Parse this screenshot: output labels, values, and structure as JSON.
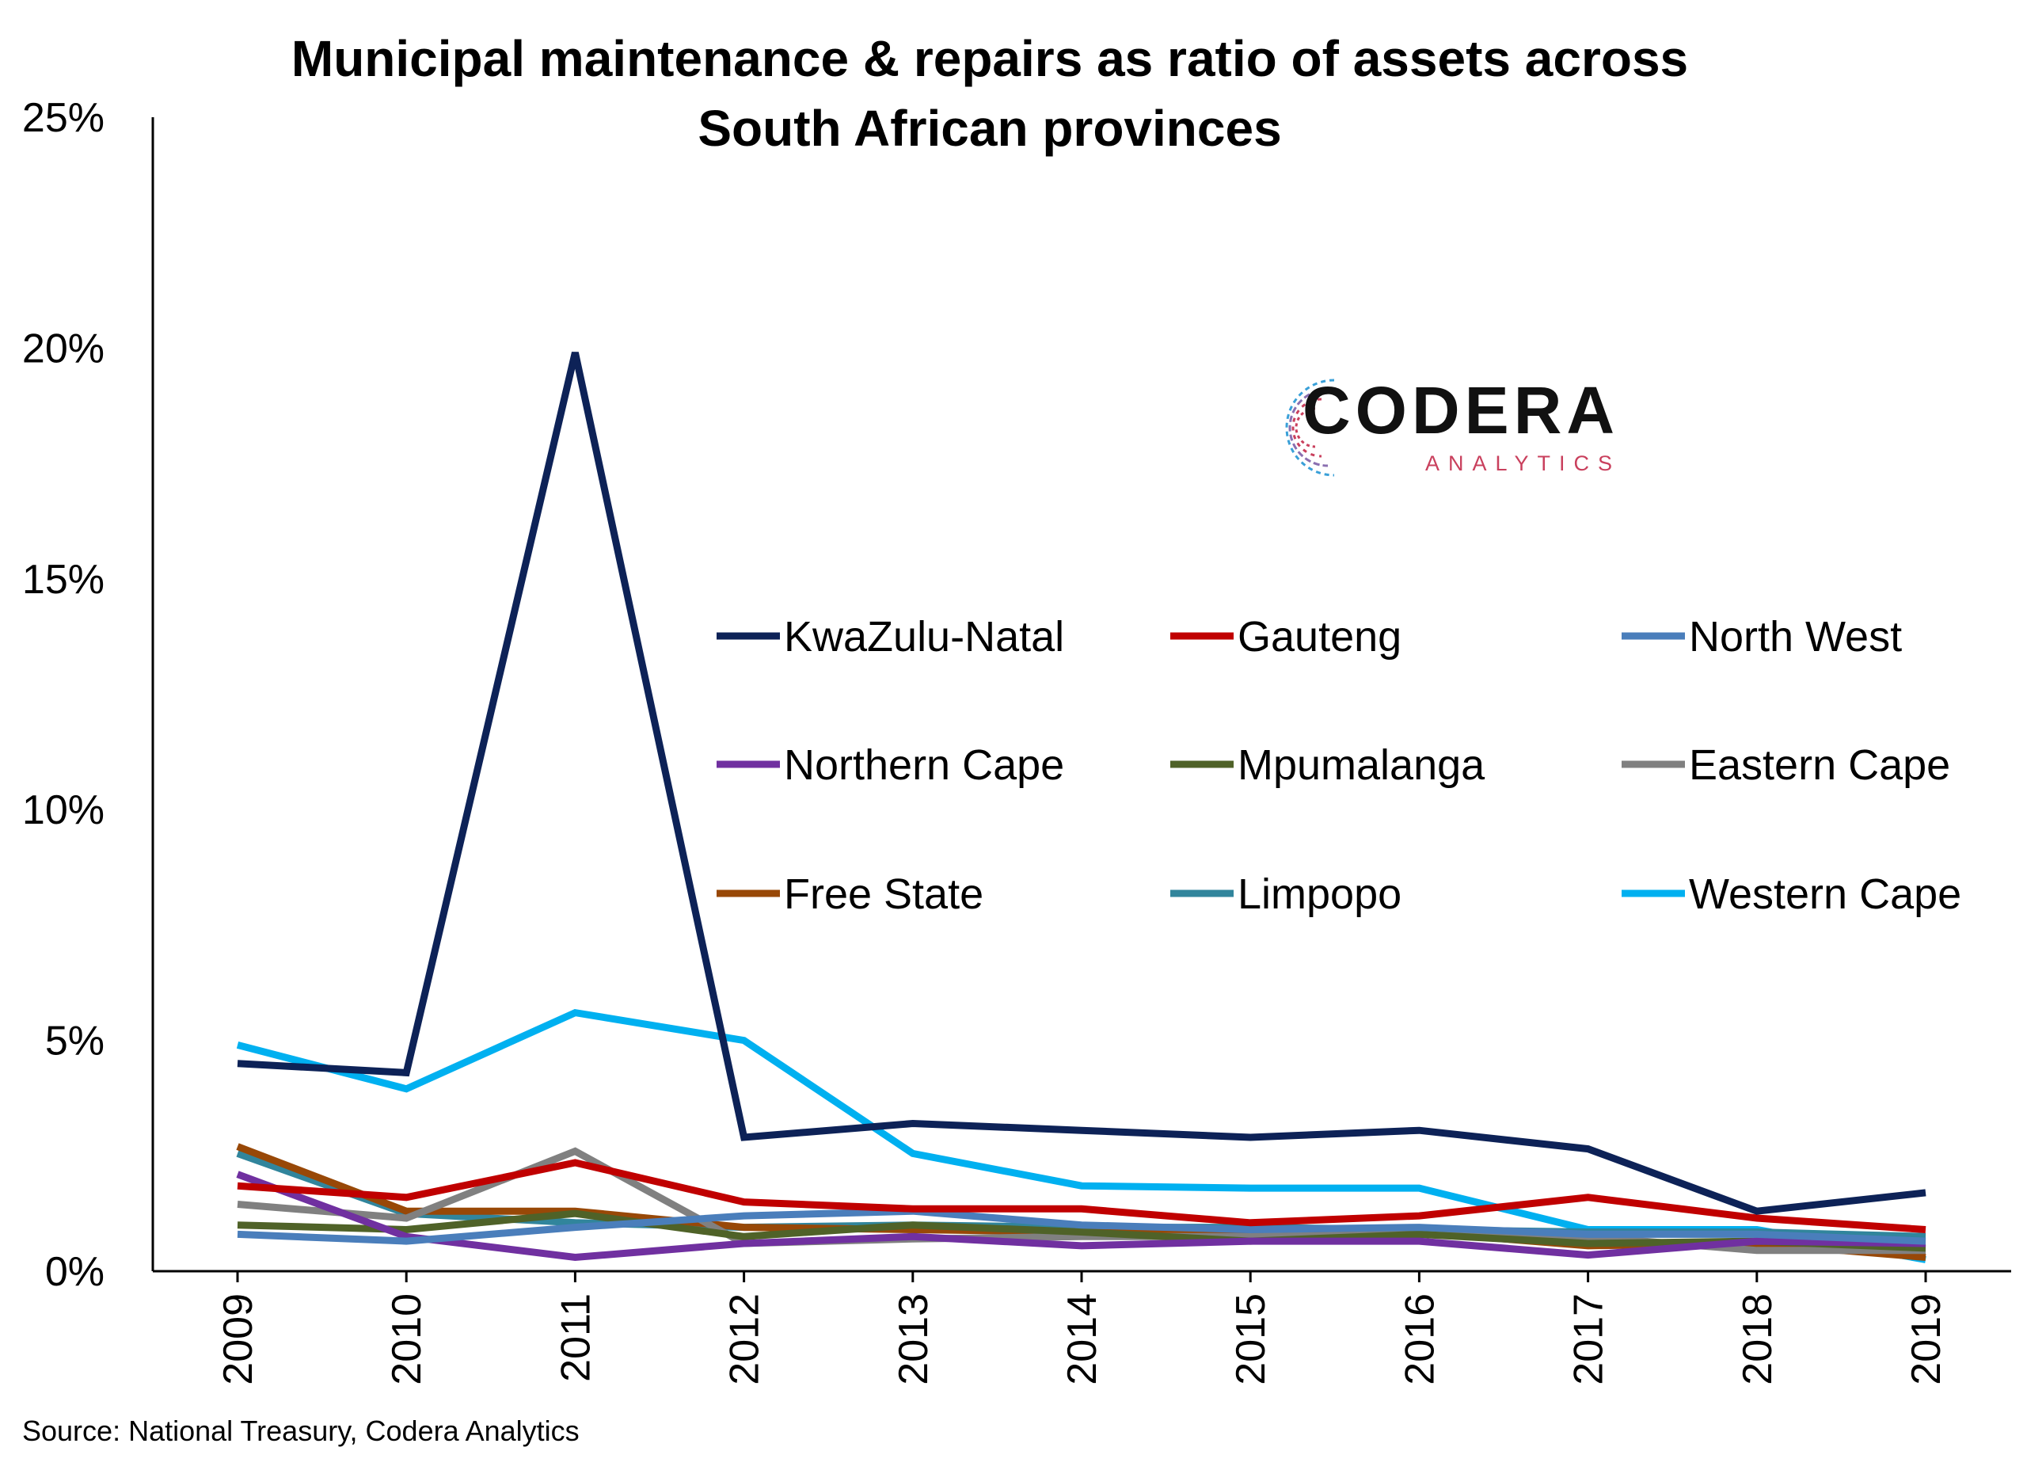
{
  "chart_data": {
    "type": "line",
    "title": "Municipal maintenance & repairs as ratio of assets across South African provinces",
    "x": [
      "2009",
      "2010",
      "2011",
      "2012",
      "2013",
      "2014",
      "2015",
      "2016",
      "2017",
      "2018",
      "2019"
    ],
    "ylim": [
      0,
      25
    ],
    "yticks": [
      0,
      5,
      10,
      15,
      20,
      25
    ],
    "ytick_labels": [
      "0%",
      "5%",
      "10%",
      "15%",
      "20%",
      "25%"
    ],
    "grid": false,
    "legend_placement": "center-right",
    "series": [
      {
        "name": "KwaZulu-Natal",
        "color": "#0d2257",
        "values": [
          4.5,
          4.3,
          19.9,
          2.9,
          3.2,
          3.05,
          2.9,
          3.05,
          2.65,
          1.3,
          1.7
        ]
      },
      {
        "name": "Gauteng",
        "color": "#c00000",
        "values": [
          1.85,
          1.6,
          2.35,
          1.5,
          1.35,
          1.35,
          1.05,
          1.2,
          1.6,
          1.15,
          0.9
        ]
      },
      {
        "name": "North West",
        "color": "#4a7ebb",
        "values": [
          0.8,
          0.65,
          0.95,
          1.2,
          1.3,
          1.0,
          0.9,
          0.95,
          0.8,
          0.8,
          0.65
        ]
      },
      {
        "name": "Northern Cape",
        "color": "#7030a0",
        "values": [
          2.1,
          0.75,
          0.3,
          0.6,
          0.75,
          0.55,
          0.65,
          0.65,
          0.35,
          0.65,
          0.6
        ]
      },
      {
        "name": "Mpumalanga",
        "color": "#4f6228",
        "values": [
          1.0,
          0.9,
          1.25,
          0.75,
          1.0,
          0.85,
          0.65,
          0.8,
          0.6,
          0.65,
          0.5
        ]
      },
      {
        "name": "Eastern Cape",
        "color": "#808080",
        "values": [
          1.45,
          1.15,
          2.6,
          0.6,
          0.7,
          0.75,
          0.75,
          0.8,
          0.75,
          0.45,
          0.45
        ]
      },
      {
        "name": "Free State",
        "color": "#984807",
        "values": [
          2.7,
          1.3,
          1.3,
          0.95,
          0.9,
          0.85,
          0.8,
          0.85,
          0.55,
          0.6,
          0.3
        ]
      },
      {
        "name": "Limpopo",
        "color": "#31859c",
        "values": [
          2.55,
          1.25,
          1.05,
          0.95,
          1.0,
          0.95,
          0.95,
          0.9,
          0.85,
          0.85,
          0.75
        ]
      },
      {
        "name": "Western Cape",
        "color": "#00b0f0",
        "values": [
          4.9,
          3.95,
          5.6,
          5.0,
          2.55,
          1.85,
          1.8,
          1.8,
          0.9,
          0.9,
          0.25
        ]
      }
    ]
  },
  "source": "Source: National Treasury, Codera Analytics",
  "logo": {
    "word": "CODERA",
    "sub": "ANALYTICS",
    "accent": "#c9405d",
    "accent2": "#3aa0d8"
  }
}
